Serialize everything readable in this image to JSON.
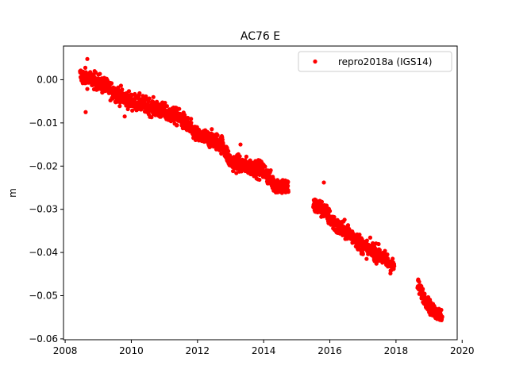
{
  "chart_data": {
    "type": "scatter",
    "title": "AC76 E",
    "xlabel": "",
    "ylabel": "m",
    "xlim": [
      2007.95,
      2019.85
    ],
    "ylim": [
      -0.0602,
      0.0078
    ],
    "xticks": [
      2008,
      2010,
      2012,
      2014,
      2016,
      2018,
      2020
    ],
    "xtick_labels": [
      "2008",
      "2010",
      "2012",
      "2014",
      "2016",
      "2018",
      "2020"
    ],
    "yticks": [
      0.0,
      -0.01,
      -0.02,
      -0.03,
      -0.04,
      -0.05,
      -0.06
    ],
    "ytick_labels": [
      "0.00",
      "−0.01",
      "−0.02",
      "−0.03",
      "−0.04",
      "−0.05",
      "−0.06"
    ],
    "grid": false,
    "legend_position": "top-right",
    "series": [
      {
        "name": "repro2018a (IGS14)",
        "color": "#ff0000",
        "marker": "circle",
        "segments": [
          {
            "x_start": 2008.45,
            "x_end": 2014.75,
            "trend": [
              [
                2008.45,
                0.001
              ],
              [
                2009.0,
                -0.0005
              ],
              [
                2009.5,
                -0.003
              ],
              [
                2010.0,
                -0.005
              ],
              [
                2010.5,
                -0.006
              ],
              [
                2011.0,
                -0.0075
              ],
              [
                2011.5,
                -0.009
              ],
              [
                2012.0,
                -0.013
              ],
              [
                2012.5,
                -0.014
              ],
              [
                2012.75,
                -0.015
              ],
              [
                2013.0,
                -0.019
              ],
              [
                2013.5,
                -0.02
              ],
              [
                2014.0,
                -0.021
              ],
              [
                2014.3,
                -0.024
              ],
              [
                2014.75,
                -0.025
              ]
            ],
            "scatter": 0.0016
          },
          {
            "x_start": 2015.5,
            "x_end": 2017.95,
            "trend": [
              [
                2015.5,
                -0.029
              ],
              [
                2015.8,
                -0.03
              ],
              [
                2016.2,
                -0.034
              ],
              [
                2016.6,
                -0.0355
              ],
              [
                2017.0,
                -0.0385
              ],
              [
                2017.5,
                -0.0405
              ],
              [
                2017.95,
                -0.0435
              ]
            ],
            "scatter": 0.0016
          },
          {
            "x_start": 2018.65,
            "x_end": 2019.4,
            "trend": [
              [
                2018.65,
                -0.0475
              ],
              [
                2018.9,
                -0.051
              ],
              [
                2019.1,
                -0.0535
              ],
              [
                2019.4,
                -0.0545
              ]
            ],
            "scatter": 0.0013
          }
        ],
        "outliers": [
          [
            2008.62,
            -0.0075
          ],
          [
            2008.67,
            0.0048
          ],
          [
            2015.82,
            -0.0238
          ],
          [
            2013.3,
            -0.015
          ],
          [
            2009.8,
            -0.0085
          ]
        ]
      }
    ]
  }
}
